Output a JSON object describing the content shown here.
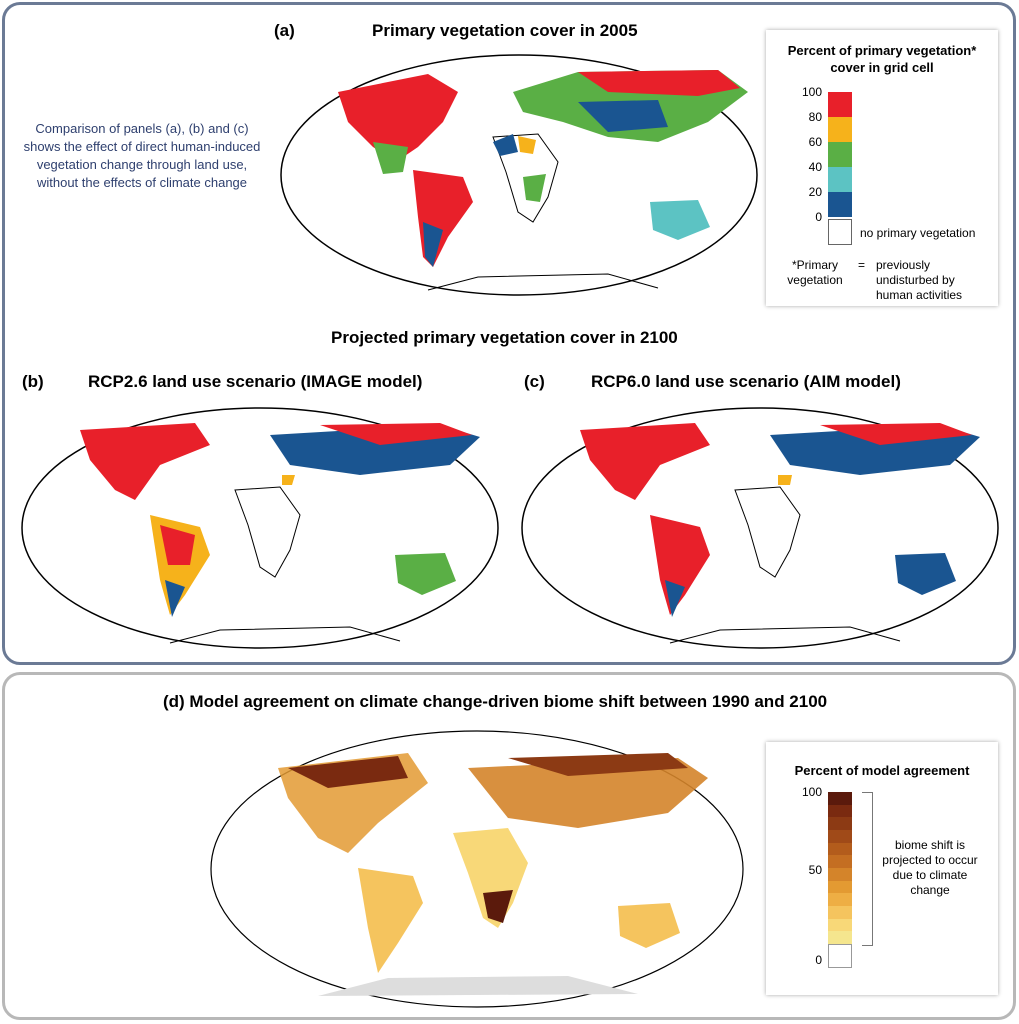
{
  "panel_a": {
    "label": "(a)",
    "title": "Primary vegetation cover in 2005",
    "note": "Comparison of panels (a), (b) and (c) shows the effect of direct human-induced vegetation change through land use, without the effects of climate change"
  },
  "legend_top": {
    "title": "Percent of primary vegetation* cover in grid cell",
    "ticks": [
      "100",
      "80",
      "60",
      "40",
      "20",
      "0"
    ],
    "colors": [
      "#e8202a",
      "#f6b21b",
      "#5aaf45",
      "#5cc3c3",
      "#1a5591"
    ],
    "none_label": "no primary vegetation",
    "footnote_term": "*Primary vegetation",
    "footnote_eq": "=",
    "footnote_def": "previously undisturbed by human activities"
  },
  "projected_title": "Projected primary vegetation cover in 2100",
  "panel_b": {
    "label": "(b)",
    "title": "RCP2.6 land use scenario (IMAGE model)"
  },
  "panel_c": {
    "label": "(c)",
    "title": "RCP6.0 land use scenario (AIM model)"
  },
  "panel_d": {
    "title": "(d) Model agreement on climate change-driven biome shift between 1990 and 2100"
  },
  "legend_bottom": {
    "title": "Percent of model agreement",
    "ticks": [
      "100",
      "50",
      "0"
    ],
    "colors": [
      "#5b1a0c",
      "#7a2a10",
      "#8c3a14",
      "#a04a18",
      "#b35c1c",
      "#c46e22",
      "#d4842a",
      "#e39a32",
      "#eeae44",
      "#f5c45e",
      "#f8d878",
      "#f5e68e"
    ],
    "bracket_text": "biome shift is projected to occur due to climate change"
  }
}
